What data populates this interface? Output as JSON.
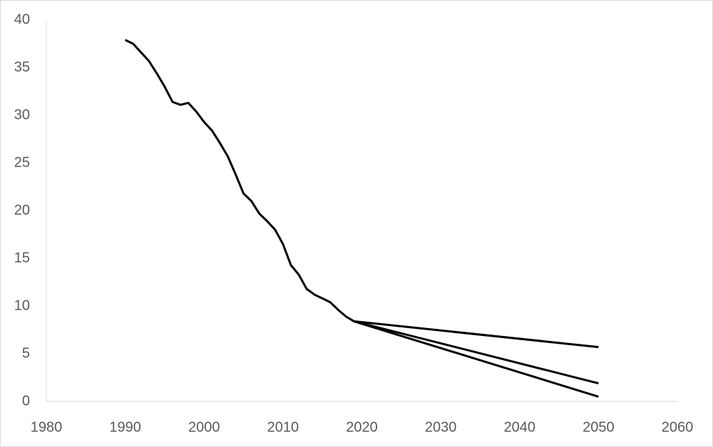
{
  "chart_data": {
    "type": "line",
    "series": [
      {
        "color": "#000000",
        "x": [
          1990,
          1991,
          1992,
          1993,
          1994,
          1995,
          1996,
          1997,
          1998,
          1999,
          2000,
          2001,
          2002,
          2003,
          2004,
          2005,
          2006,
          2007,
          2008,
          2009,
          2010,
          2011,
          2012,
          2013,
          2014,
          2015,
          2016,
          2017,
          2018,
          2019
        ],
        "values": [
          37.9,
          37.5,
          36.6,
          35.7,
          34.4,
          33.0,
          31.4,
          31.1,
          31.3,
          30.4,
          29.3,
          28.4,
          27.1,
          25.7,
          23.8,
          21.8,
          21.0,
          19.7,
          18.9,
          18.0,
          16.5,
          14.3,
          13.3,
          11.8,
          11.2,
          10.8,
          10.4,
          9.6,
          8.9,
          8.4
        ]
      },
      {
        "color": "#000000",
        "x": [
          2019,
          2050
        ],
        "values": [
          8.4,
          5.7
        ]
      },
      {
        "color": "#000000",
        "x": [
          2019,
          2050
        ],
        "values": [
          8.4,
          1.9
        ]
      },
      {
        "color": "#000000",
        "x": [
          2019,
          2050
        ],
        "values": [
          8.4,
          0.5
        ]
      }
    ],
    "xlim": [
      1980,
      2060
    ],
    "xticks": [
      1980,
      1990,
      2000,
      2010,
      2020,
      2030,
      2040,
      2050,
      2060
    ],
    "ylim": [
      0,
      40
    ],
    "yticks": [
      0,
      5,
      10,
      15,
      20,
      25,
      30,
      35,
      40
    ],
    "grid": false
  }
}
